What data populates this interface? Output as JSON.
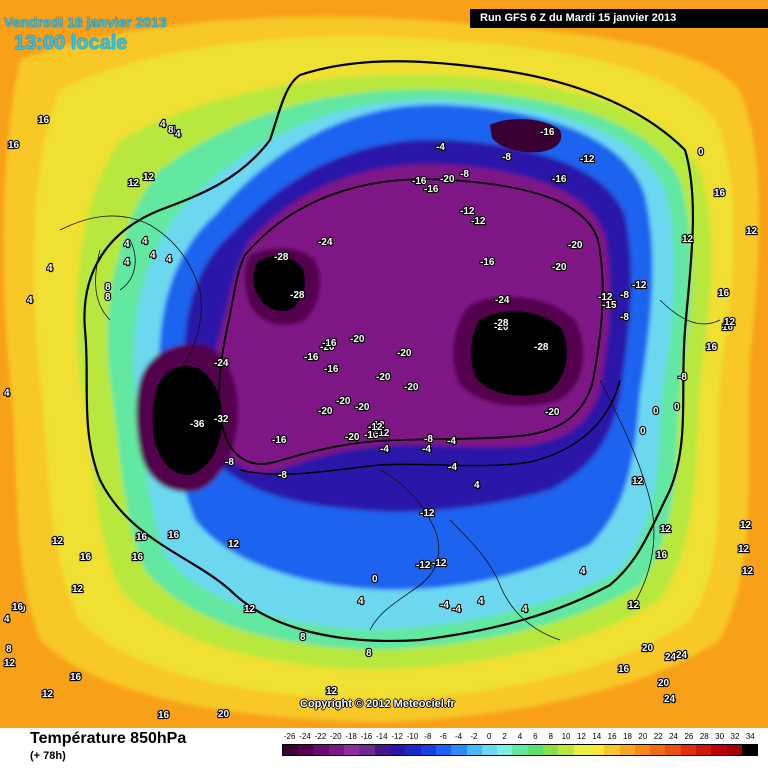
{
  "header": {
    "valid_date": "Vendredi 18 janvier 2013",
    "valid_time": "13:00 locale",
    "run_info": "Run GFS 6 Z du Mardi 15 janvier 2013"
  },
  "footer": {
    "variable": "Température 850hPa",
    "forecast_hour": "(+ 78h)",
    "copyright": "Copyright © 2012 Meteociel.fr"
  },
  "legend": {
    "labels": [
      "-26",
      "-24",
      "-22",
      "-20",
      "-18",
      "-16",
      "-14",
      "-12",
      "-10",
      "-8",
      "-6",
      "-4",
      "-2",
      "0",
      "2",
      "4",
      "6",
      "8",
      "10",
      "12",
      "14",
      "16",
      "18",
      "20",
      "22",
      "24",
      "26",
      "28",
      "30",
      "32",
      "34"
    ],
    "colors": [
      "#3a0034",
      "#52004d",
      "#6a0a6e",
      "#7f1886",
      "#8e2c9f",
      "#6a2a8f",
      "#44168a",
      "#2a14a8",
      "#1a28c8",
      "#1640e0",
      "#1c64f0",
      "#2a8cf4",
      "#48b8f4",
      "#6cd8f0",
      "#7af0e0",
      "#62e8a0",
      "#58e070",
      "#88e048",
      "#b8e83c",
      "#e8f040",
      "#f8e838",
      "#f8c828",
      "#f8a820",
      "#f88818",
      "#f06c14",
      "#e85010",
      "#e03010",
      "#d01808",
      "#c00000",
      "#a00000",
      "#000000"
    ]
  },
  "map_labels": [
    "16",
    "16",
    "4",
    "4",
    "4",
    "8",
    "12",
    "12",
    "4",
    "4",
    "4",
    "4",
    "4",
    "4",
    "8",
    "8",
    "4",
    "4",
    "12",
    "12",
    "0",
    "4",
    "8",
    "12",
    "12",
    "8",
    "16",
    "16",
    "16",
    "16",
    "12",
    "16",
    "12",
    "8",
    "-4",
    "-8",
    "-16",
    "-12",
    "-16",
    "-16",
    "-16",
    "-20",
    "-8",
    "-12",
    "-12",
    "-16",
    "-20",
    "-20",
    "-24",
    "-28",
    "-28",
    "-24",
    "-20",
    "-20",
    "-20",
    "-20",
    "-20",
    "-16",
    "-16",
    "-20",
    "-20",
    "-20",
    "-16",
    "-20",
    "-12",
    "-8",
    "-16",
    "-12",
    "-20",
    "-20",
    "-28",
    "-28",
    "-24",
    "-16",
    "-12",
    "-15",
    "-8",
    "-8",
    "-8",
    "-12",
    "-12",
    "-36",
    "-32",
    "-8",
    "-8",
    "-4",
    "-4",
    "-4",
    "-4",
    "-12",
    "-12",
    "-12",
    "-4",
    "-4",
    "0",
    "0",
    "0",
    "0",
    "0",
    "4",
    "4",
    "4",
    "8",
    "12",
    "12",
    "12",
    "16",
    "16",
    "16",
    "12",
    "16",
    "20",
    "24",
    "24",
    "20",
    "24",
    "12",
    "20",
    "16",
    "12",
    "4",
    "4",
    "12",
    "16",
    "12",
    "12",
    "16",
    "16",
    "8",
    "12"
  ],
  "colors": {
    "ocean_warm": "#f8a820",
    "run_box": "#000000",
    "title_cyan": "#1ec8ff"
  }
}
